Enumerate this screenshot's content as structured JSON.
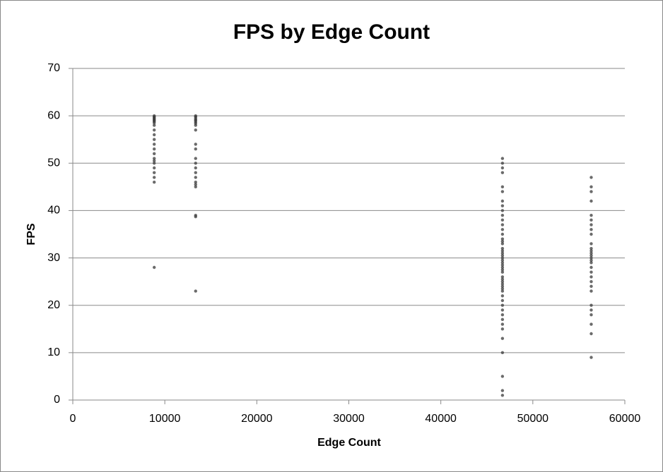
{
  "chart_data": {
    "type": "scatter",
    "title": "FPS by Edge Count",
    "xlabel": "Edge Count",
    "ylabel": "FPS",
    "x": [
      8850,
      8850,
      8850,
      8850,
      8850,
      8850,
      8850,
      8850,
      8850,
      8850,
      8850,
      8850,
      8850,
      8850,
      8850,
      8850,
      8850,
      8850,
      8850,
      8850,
      8850,
      8850,
      8850,
      13350,
      13350,
      13350,
      13350,
      13350,
      13350,
      13350,
      13350,
      13350,
      13350,
      13350,
      13350,
      13350,
      13350,
      13350,
      13350,
      13350,
      13350,
      13350,
      13350,
      13350,
      13350,
      46700,
      46700,
      46700,
      46700,
      46700,
      46700,
      46700,
      46700,
      46700,
      46700,
      46700,
      46700,
      46700,
      46700,
      46700,
      46700,
      46700,
      46700,
      46700,
      46700,
      46700,
      46700,
      46700,
      46700,
      46700,
      46700,
      46700,
      46700,
      46700,
      46700,
      46700,
      46700,
      46700,
      46700,
      46700,
      46700,
      46700,
      46700,
      46700,
      46700,
      46700,
      46700,
      46700,
      46700,
      46700,
      46700,
      46700,
      46700,
      56350,
      56350,
      56350,
      56350,
      56350,
      56350,
      56350,
      56350,
      56350,
      56350,
      56350,
      56350,
      56350,
      56350,
      56350,
      56350,
      56350,
      56350,
      56350,
      56350,
      56350,
      56350,
      56350,
      56350,
      56350,
      56350,
      56350,
      56350,
      56350
    ],
    "values": [
      60,
      59.8,
      59.6,
      59.4,
      59.2,
      59,
      58.8,
      58.5,
      58,
      57,
      56,
      55,
      54,
      53,
      52,
      51,
      50.5,
      50,
      49,
      48,
      47,
      46,
      28,
      60,
      59.8,
      59.5,
      59.2,
      59,
      58.7,
      58.4,
      58,
      57,
      54,
      53,
      51,
      50,
      49,
      48,
      47,
      46,
      45.5,
      45,
      39,
      38.7,
      23,
      51,
      50,
      49,
      48,
      45,
      44,
      42,
      41,
      40,
      39,
      38,
      37,
      36,
      35,
      34,
      33.5,
      33,
      32,
      31.5,
      31,
      30.5,
      30,
      29.5,
      29,
      28.5,
      28,
      27.5,
      27,
      26,
      25.5,
      25,
      24.5,
      24,
      23.5,
      23,
      22,
      21,
      20,
      19,
      18,
      17,
      16,
      15,
      13,
      10,
      5,
      2,
      1,
      47,
      45,
      44,
      42,
      39,
      38,
      37,
      36,
      35,
      33,
      32,
      31.5,
      31,
      30.5,
      30,
      29.5,
      29,
      28,
      27,
      26,
      25,
      24,
      23,
      20,
      19,
      18,
      16,
      14,
      9
    ],
    "color": "#3a3a3a",
    "xlim": [
      0,
      60000
    ],
    "xticks": [
      0,
      10000,
      20000,
      30000,
      40000,
      50000,
      60000
    ],
    "ylim": [
      0,
      70
    ],
    "yticks": [
      0,
      10,
      20,
      30,
      40,
      50,
      60,
      70
    ],
    "grid": true
  }
}
